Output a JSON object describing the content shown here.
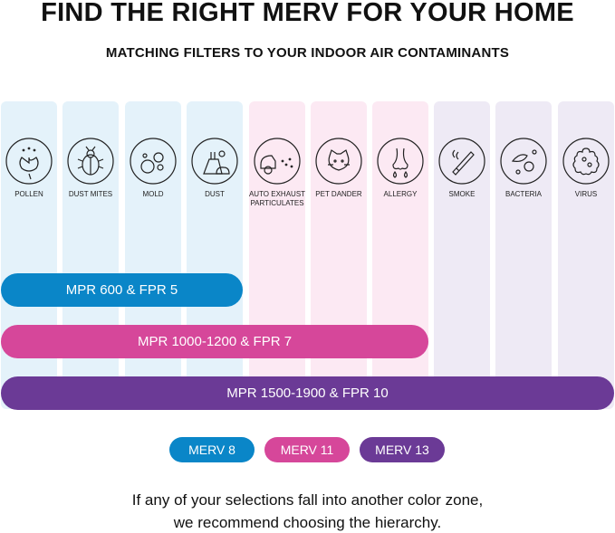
{
  "title": "FIND THE RIGHT MERV FOR YOUR HOME",
  "subtitle": "MATCHING FILTERS TO YOUR INDOOR AIR CONTAMINANTS",
  "colors": {
    "blue": "#0a86c8",
    "pink": "#d6479a",
    "purple": "#6b3a96",
    "blue_bg": "#e4f2fa",
    "pink_bg": "#fce9f3",
    "purple_bg": "#eeeaf5"
  },
  "contaminants": [
    {
      "label": "POLLEN",
      "icon": "tulip-icon",
      "zone": "blue"
    },
    {
      "label": "DUST MITES",
      "icon": "bug-icon",
      "zone": "blue"
    },
    {
      "label": "MOLD",
      "icon": "spores-icon",
      "zone": "blue"
    },
    {
      "label": "DUST",
      "icon": "dust-pan-icon",
      "zone": "blue"
    },
    {
      "label": "AUTO EXHAUST PARTICULATES",
      "icon": "car-exhaust-icon",
      "zone": "pink"
    },
    {
      "label": "PET DANDER",
      "icon": "cat-icon",
      "zone": "pink"
    },
    {
      "label": "ALLERGY",
      "icon": "nose-icon",
      "zone": "pink"
    },
    {
      "label": "SMOKE",
      "icon": "cigarette-icon",
      "zone": "purple"
    },
    {
      "label": "BACTERIA",
      "icon": "bacteria-icon",
      "zone": "purple"
    },
    {
      "label": "VIRUS",
      "icon": "virus-icon",
      "zone": "purple"
    }
  ],
  "bars": [
    {
      "label": "MPR 600 & FPR 5",
      "color": "blue"
    },
    {
      "label": "MPR 1000-1200 & FPR 7",
      "color": "pink"
    },
    {
      "label": "MPR 1500-1900 & FPR 10",
      "color": "purple"
    }
  ],
  "legend": [
    {
      "label": "MERV 8",
      "color": "blue"
    },
    {
      "label": "MERV 11",
      "color": "pink"
    },
    {
      "label": "MERV 13",
      "color": "purple"
    }
  ],
  "footer": {
    "line1": "If any of your selections fall into another color zone,",
    "line2": "we recommend choosing the hierarchy."
  }
}
